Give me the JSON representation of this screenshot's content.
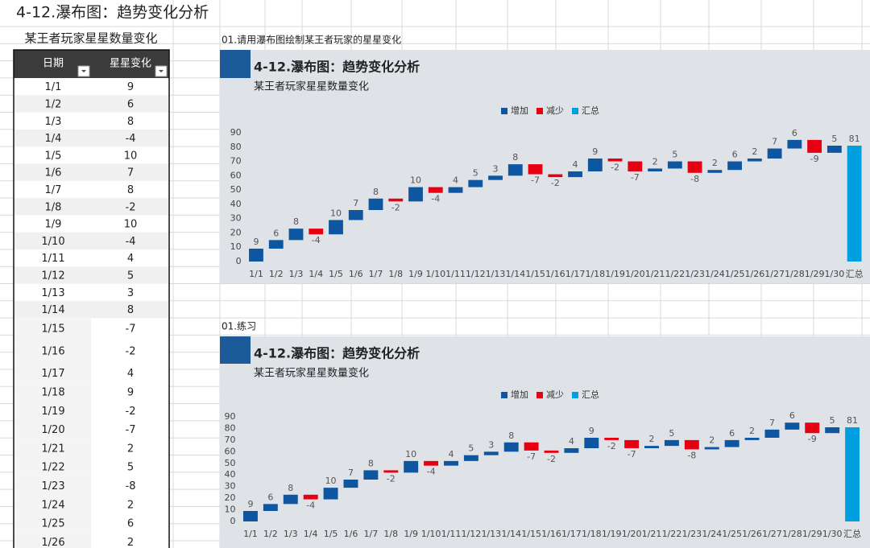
{
  "sheet_title": "4-12.瀑布图：趋势变化分析",
  "table": {
    "title": "某王者玩家星星数量变化",
    "columns": [
      "日期",
      "星星变化"
    ],
    "rows": [
      [
        "1/1",
        9
      ],
      [
        "1/2",
        6
      ],
      [
        "1/3",
        8
      ],
      [
        "1/4",
        -4
      ],
      [
        "1/5",
        10
      ],
      [
        "1/6",
        7
      ],
      [
        "1/7",
        8
      ],
      [
        "1/8",
        -2
      ],
      [
        "1/9",
        10
      ],
      [
        "1/10",
        -4
      ],
      [
        "1/11",
        4
      ],
      [
        "1/12",
        5
      ],
      [
        "1/13",
        3
      ],
      [
        "1/14",
        8
      ],
      [
        "1/15",
        -7
      ],
      [
        "1/16",
        -2
      ],
      [
        "1/17",
        4
      ],
      [
        "1/18",
        9
      ],
      [
        "1/19",
        -2
      ],
      [
        "1/20",
        -7
      ],
      [
        "1/21",
        2
      ],
      [
        "1/22",
        5
      ],
      [
        "1/23",
        -8
      ],
      [
        "1/24",
        2
      ],
      [
        "1/25",
        6
      ],
      [
        "1/26",
        2
      ]
    ]
  },
  "chart_data": [
    {
      "caption": "01.请用瀑布图绘制某王者玩家的星星变化",
      "type": "waterfall",
      "title": "4-12.瀑布图：趋势变化分析",
      "subtitle": "某王者玩家星星数量变化",
      "categories": [
        "1/1",
        "1/2",
        "1/3",
        "1/4",
        "1/5",
        "1/6",
        "1/7",
        "1/8",
        "1/9",
        "1/10",
        "1/11",
        "1/12",
        "1/13",
        "1/14",
        "1/15",
        "1/16",
        "1/17",
        "1/18",
        "1/19",
        "1/20",
        "1/21",
        "1/22",
        "1/23",
        "1/24",
        "1/25",
        "1/26",
        "1/27",
        "1/28",
        "1/29",
        "1/30",
        "汇总"
      ],
      "values": [
        9,
        6,
        8,
        -4,
        10,
        7,
        8,
        -2,
        10,
        -4,
        4,
        5,
        3,
        8,
        -7,
        -2,
        4,
        9,
        -2,
        -7,
        2,
        5,
        -8,
        2,
        6,
        2,
        7,
        6,
        -9,
        5,
        81
      ],
      "legend": [
        {
          "name": "增加",
          "color": "#0e56a0"
        },
        {
          "name": "减少",
          "color": "#e60012"
        },
        {
          "name": "汇总",
          "color": "#00a0e0"
        }
      ],
      "ylim": [
        0,
        90
      ],
      "yticks": [
        0,
        10,
        20,
        30,
        40,
        50,
        60,
        70,
        80,
        90
      ]
    },
    {
      "caption": "01.练习",
      "type": "waterfall",
      "title": "4-12.瀑布图：趋势变化分析",
      "subtitle": "某王者玩家星星数量变化",
      "categories": [
        "1/1",
        "1/2",
        "1/3",
        "1/4",
        "1/5",
        "1/6",
        "1/7",
        "1/8",
        "1/9",
        "1/10",
        "1/11",
        "1/12",
        "1/13",
        "1/14",
        "1/15",
        "1/16",
        "1/17",
        "1/18",
        "1/19",
        "1/20",
        "1/21",
        "1/22",
        "1/23",
        "1/24",
        "1/25",
        "1/26",
        "1/27",
        "1/28",
        "1/29",
        "1/30",
        "汇总"
      ],
      "values": [
        9,
        6,
        8,
        -4,
        10,
        7,
        8,
        -2,
        10,
        -4,
        4,
        5,
        3,
        8,
        -7,
        -2,
        4,
        9,
        -2,
        -7,
        2,
        5,
        -8,
        2,
        6,
        2,
        7,
        6,
        -9,
        5,
        81
      ],
      "legend": [
        {
          "name": "增加",
          "color": "#0e56a0"
        },
        {
          "name": "减少",
          "color": "#e60012"
        },
        {
          "name": "汇总",
          "color": "#00a0e0"
        }
      ],
      "ylim": [
        0,
        90
      ],
      "yticks": [
        0,
        10,
        20,
        30,
        40,
        50,
        60,
        70,
        80,
        90
      ]
    }
  ]
}
